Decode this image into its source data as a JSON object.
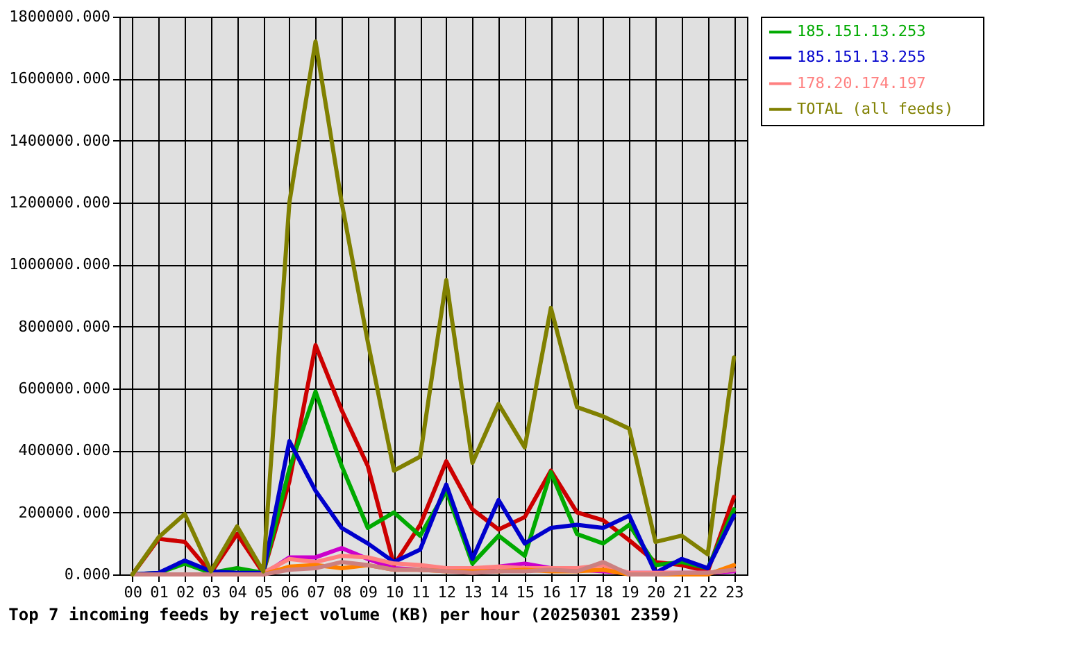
{
  "chart_data": {
    "type": "line",
    "title": "Top 7 incoming feeds by reject volume (KB) per hour (20250301 2359)",
    "categories": [
      "00",
      "01",
      "02",
      "03",
      "04",
      "05",
      "06",
      "07",
      "08",
      "09",
      "10",
      "11",
      "12",
      "13",
      "14",
      "15",
      "16",
      "17",
      "18",
      "19",
      "20",
      "21",
      "22",
      "23"
    ],
    "series": [
      {
        "color": "#cc0000",
        "values": [
          0,
          115000,
          105000,
          5000,
          130000,
          5000,
          300000,
          740000,
          530000,
          350000,
          30000,
          160000,
          365000,
          210000,
          145000,
          185000,
          335000,
          200000,
          175000,
          110000,
          40000,
          30000,
          10000,
          250000
        ]
      },
      {
        "name": "185.151.13.253",
        "color": "#00aa00",
        "values": [
          0,
          5000,
          35000,
          5000,
          20000,
          5000,
          340000,
          590000,
          350000,
          150000,
          200000,
          125000,
          270000,
          35000,
          125000,
          60000,
          330000,
          130000,
          100000,
          160000,
          30000,
          40000,
          20000,
          210000
        ]
      },
      {
        "name": "185.151.13.255",
        "color": "#0000cc",
        "values": [
          0,
          5000,
          45000,
          10000,
          5000,
          5000,
          430000,
          270000,
          150000,
          100000,
          40000,
          80000,
          290000,
          50000,
          240000,
          100000,
          150000,
          160000,
          150000,
          190000,
          5000,
          50000,
          20000,
          190000
        ]
      },
      {
        "color": "#cc00cc",
        "values": [
          null,
          null,
          null,
          null,
          null,
          0,
          55000,
          55000,
          85000,
          50000,
          20000,
          15000,
          15000,
          10000,
          25000,
          35000,
          20000,
          15000,
          10000,
          5000,
          5000,
          5000,
          5000,
          10000
        ]
      },
      {
        "name": "178.20.174.197",
        "color": "#ff8080",
        "values": [
          null,
          null,
          null,
          null,
          null,
          5000,
          50000,
          40000,
          60000,
          55000,
          35000,
          30000,
          20000,
          20000,
          25000,
          20000,
          20000,
          20000,
          30000,
          5000,
          5000,
          5000,
          5000,
          15000
        ]
      },
      {
        "color": "#ff8000",
        "values": [
          null,
          null,
          null,
          null,
          null,
          0,
          25000,
          30000,
          20000,
          30000,
          15000,
          15000,
          10000,
          10000,
          10000,
          15000,
          10000,
          10000,
          15000,
          0,
          0,
          0,
          0,
          30000
        ]
      },
      {
        "color": "#cc8080",
        "values": [
          0,
          0,
          0,
          0,
          0,
          0,
          15000,
          20000,
          40000,
          30000,
          15000,
          15000,
          10000,
          5000,
          10000,
          10000,
          15000,
          10000,
          40000,
          0,
          0,
          5000,
          5000,
          15000
        ]
      },
      {
        "name": "TOTAL (all feeds)",
        "color": "#808000",
        "values": [
          0,
          120000,
          195000,
          10000,
          155000,
          10000,
          1200000,
          1720000,
          1200000,
          750000,
          335000,
          380000,
          950000,
          360000,
          550000,
          410000,
          860000,
          540000,
          510000,
          470000,
          105000,
          125000,
          65000,
          700000
        ]
      }
    ],
    "ylim": [
      0,
      1800000
    ],
    "yticks": [
      {
        "value": 0,
        "label": "0.000"
      },
      {
        "value": 200000,
        "label": "200000.000"
      },
      {
        "value": 400000,
        "label": "400000.000"
      },
      {
        "value": 600000,
        "label": "600000.000"
      },
      {
        "value": 800000,
        "label": "800000.000"
      },
      {
        "value": 1000000,
        "label": "1000000.000"
      },
      {
        "value": 1200000,
        "label": "1200000.000"
      },
      {
        "value": 1400000,
        "label": "1400000.000"
      },
      {
        "value": 1600000,
        "label": "1600000.000"
      },
      {
        "value": 1800000,
        "label": "1800000.000"
      }
    ],
    "grid": true,
    "legend": "right"
  }
}
